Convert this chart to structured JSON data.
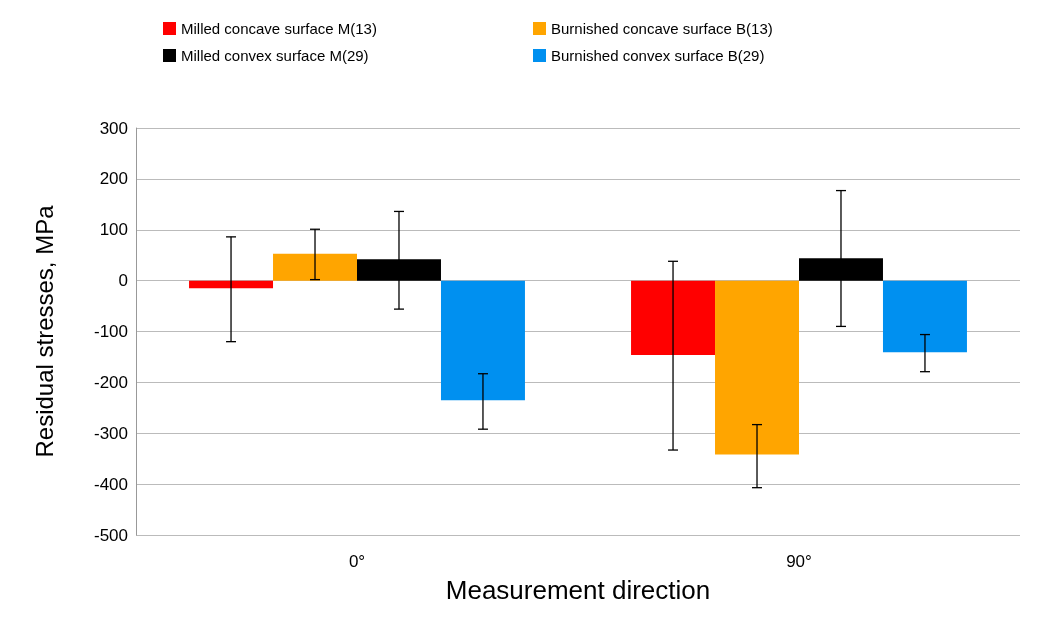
{
  "chart_data": {
    "type": "bar",
    "xlabel": "Measurement direction",
    "ylabel": "Residual stresses, MPa",
    "categories": [
      "0°",
      "90°"
    ],
    "series": [
      {
        "name": "Milled concave surface M(13)",
        "color": "#ff0000",
        "values": [
          -15,
          -146
        ],
        "errors": [
          [
            -120,
            86
          ],
          [
            -333,
            38
          ]
        ]
      },
      {
        "name": "Burnished concave surface B(13)",
        "color": "#ffa500",
        "values": [
          53,
          -342
        ],
        "errors": [
          [
            2,
            101
          ],
          [
            -407,
            -283
          ]
        ]
      },
      {
        "name": "Milled convex surface M(29)",
        "color": "#000000",
        "values": [
          42,
          44
        ],
        "errors": [
          [
            -56,
            136
          ],
          [
            -90,
            177
          ]
        ]
      },
      {
        "name": "Burnished convex surface B(29)",
        "color": "#0090f0",
        "values": [
          -235,
          -141
        ],
        "errors": [
          [
            -292,
            -183
          ],
          [
            -179,
            -106
          ]
        ]
      }
    ],
    "ylim": [
      -500,
      300
    ],
    "yticks": [
      -500,
      -400,
      -300,
      -200,
      -100,
      0,
      100,
      200,
      300
    ],
    "grid": "y",
    "legend": "top"
  }
}
